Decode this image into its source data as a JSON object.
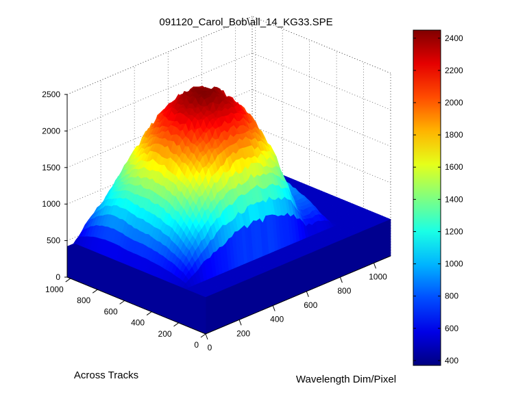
{
  "chart_data": {
    "type": "surface",
    "title": "091120_Carol_Bob\\all_14_KG33.SPE",
    "xlabel": "Wavelength Dim/Pixel",
    "ylabel": "Across Tracks",
    "zlabel": "",
    "xlim": [
      0,
      1100
    ],
    "ylim": [
      0,
      1024
    ],
    "zlim": [
      0,
      2500
    ],
    "x_ticks": [
      "0",
      "200",
      "400",
      "600",
      "800",
      "1000"
    ],
    "y_ticks": [
      "0",
      "200",
      "400",
      "600",
      "800",
      "1000"
    ],
    "z_ticks": [
      "0",
      "500",
      "1000",
      "1500",
      "2000",
      "2500"
    ],
    "colormap": "jet",
    "colorbar": {
      "range": [
        370,
        2450
      ],
      "ticks": [
        "400",
        "600",
        "800",
        "1000",
        "1200",
        "1400",
        "1600",
        "1800",
        "2000",
        "2200",
        "2400"
      ]
    },
    "grid": true,
    "surface_profile": {
      "baseline": 500,
      "peak_value": 2450,
      "ridge_across_track_range": [
        150,
        1000
      ],
      "ridge_wavelength_range": [
        0,
        900
      ],
      "ridge_center_wavelength": 450,
      "fringe_wavelength_start": 650
    }
  }
}
